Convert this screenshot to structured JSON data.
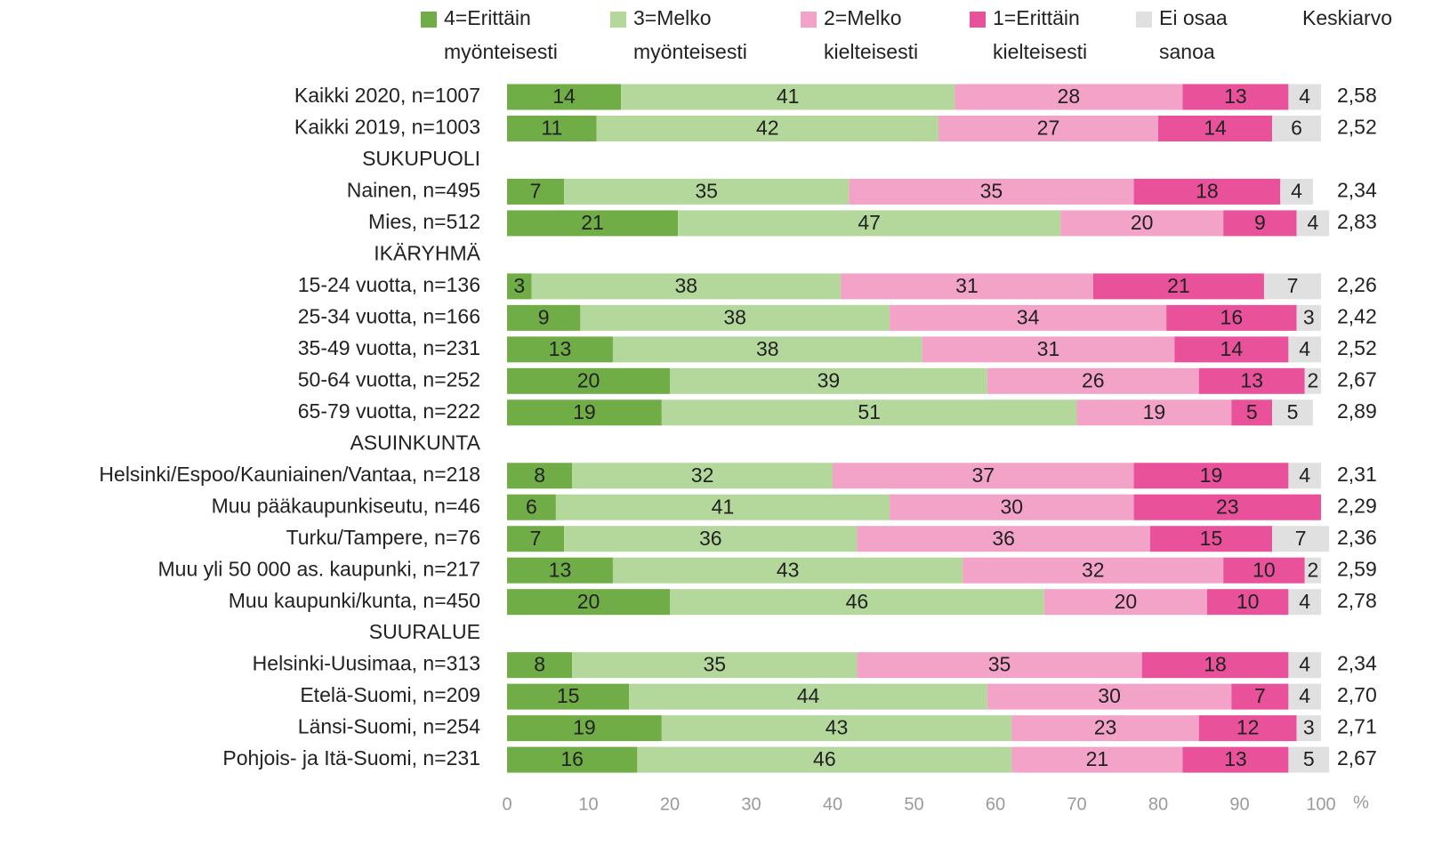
{
  "chart_data": {
    "type": "stacked_barh",
    "categories": [
      "Kaikki 2020, n=1007",
      "Kaikki 2019, n=1003",
      "SUKUPUOLI",
      "Nainen, n=495",
      "Mies, n=512",
      "IKÄRYHMÄ",
      "15-24 vuotta, n=136",
      "25-34 vuotta, n=166",
      "35-49 vuotta, n=231",
      "50-64 vuotta, n=252",
      "65-79 vuotta, n=222",
      "ASUINKUNTA",
      "Helsinki/Espoo/Kauniainen/Vantaa, n=218",
      "Muu pääkaupunkiseutu, n=46",
      "Turku/Tampere, n=76",
      "Muu yli 50 000 as. kaupunki, n=217",
      "Muu kaupunki/kunta, n=450",
      "SUURALUE",
      "Helsinki-Uusimaa, n=313",
      "Etelä-Suomi, n=209",
      "Länsi-Suomi, n=254",
      "Pohjois- ja Itä-Suomi, n=231"
    ],
    "series": [
      {
        "name": "4=Erittäin myönteisesti",
        "color": "#70ad47",
        "values": [
          14,
          11,
          null,
          7,
          21,
          null,
          3,
          9,
          13,
          20,
          19,
          null,
          8,
          6,
          7,
          13,
          20,
          null,
          8,
          15,
          19,
          16
        ]
      },
      {
        "name": "3=Melko myönteisesti",
        "color": "#b4d89b",
        "values": [
          41,
          42,
          null,
          35,
          47,
          null,
          38,
          38,
          38,
          39,
          51,
          null,
          32,
          41,
          36,
          43,
          46,
          null,
          35,
          44,
          43,
          46
        ]
      },
      {
        "name": "2=Melko kielteisesti",
        "color": "#f4a3c8",
        "values": [
          28,
          27,
          null,
          35,
          20,
          null,
          31,
          34,
          31,
          26,
          19,
          null,
          37,
          30,
          36,
          32,
          20,
          null,
          35,
          30,
          23,
          21
        ]
      },
      {
        "name": "1=Erittäin kielteisesti",
        "color": "#e9519b",
        "values": [
          13,
          14,
          null,
          18,
          9,
          null,
          21,
          16,
          14,
          13,
          5,
          null,
          19,
          23,
          15,
          10,
          10,
          null,
          18,
          7,
          12,
          13
        ]
      },
      {
        "name": "Ei osaa sanoa",
        "color": "#e0e0e0",
        "values": [
          4,
          6,
          null,
          4,
          4,
          null,
          7,
          3,
          4,
          2,
          5,
          null,
          4,
          null,
          7,
          2,
          4,
          null,
          4,
          4,
          3,
          5
        ]
      }
    ],
    "averages": {
      "name": "Keskiarvo",
      "values": [
        2.58,
        2.52,
        null,
        2.34,
        2.83,
        null,
        2.26,
        2.42,
        2.52,
        2.67,
        2.89,
        null,
        2.31,
        2.29,
        2.36,
        2.59,
        2.78,
        null,
        2.34,
        2.7,
        2.71,
        2.67
      ],
      "value_labels": [
        "2,58",
        "2,52",
        null,
        "2,34",
        "2,83",
        null,
        "2,26",
        "2,42",
        "2,52",
        "2,67",
        "2,89",
        null,
        "2,31",
        "2,29",
        "2,36",
        "2,59",
        "2,78",
        null,
        "2,34",
        "2,70",
        "2,71",
        "2,67"
      ]
    },
    "xlabel": "%",
    "xlim": [
      0,
      100
    ],
    "xticks": [
      0,
      10,
      20,
      30,
      40,
      50,
      60,
      70,
      80,
      90,
      100
    ],
    "grid": false,
    "legend": "top"
  }
}
